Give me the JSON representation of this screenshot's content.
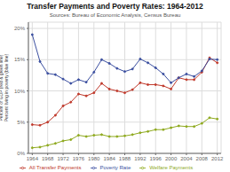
{
  "chart_data": {
    "type": "line",
    "title": "Transfer Payments and Poverty Rates: 1964-2012",
    "subtitle": "Sources: Bureau of Economic Analysis, Census Bureau",
    "ylabel": "Percent of GDP (red & green line)\nPercent living in poverty (blue line)",
    "x": [
      1964,
      1966,
      1968,
      1970,
      1972,
      1974,
      1976,
      1978,
      1980,
      1982,
      1984,
      1986,
      1988,
      1990,
      1992,
      1994,
      1996,
      1998,
      2000,
      2002,
      2004,
      2006,
      2008,
      2010,
      2012
    ],
    "series": [
      {
        "name": "All Transfer Payments",
        "color": "#c0392b",
        "marker": "circle",
        "values": [
          4.6,
          4.5,
          5.0,
          6.1,
          7.6,
          8.2,
          9.5,
          9.2,
          9.7,
          11.2,
          10.3,
          10.0,
          9.7,
          10.2,
          11.3,
          11.0,
          11.0,
          10.8,
          10.3,
          12.1,
          11.8,
          11.8,
          13.0,
          15.3,
          14.5
        ]
      },
      {
        "name": "Welfare Payments",
        "color": "#8faa1e",
        "marker": "circle",
        "values": [
          0.9,
          1.0,
          1.3,
          1.6,
          2.0,
          2.2,
          2.9,
          2.7,
          2.9,
          3.0,
          2.7,
          2.7,
          2.8,
          3.0,
          3.3,
          3.5,
          3.8,
          3.8,
          4.1,
          4.4,
          4.3,
          4.3,
          4.8,
          5.7,
          5.5
        ]
      },
      {
        "name": "Poverty Rate",
        "color": "#3b4fa0",
        "marker": "circle",
        "values": [
          19.0,
          14.7,
          12.8,
          12.6,
          11.9,
          11.2,
          11.8,
          11.4,
          13.0,
          15.0,
          14.4,
          13.6,
          13.1,
          13.5,
          15.1,
          14.5,
          13.7,
          12.7,
          11.3,
          12.1,
          12.7,
          12.3,
          13.2,
          15.1,
          15.0
        ]
      }
    ],
    "xlim": [
      1963,
      2013
    ],
    "xticks": [
      1964,
      1968,
      1972,
      1976,
      1980,
      1984,
      1988,
      1992,
      1996,
      2000,
      2004,
      2008,
      2012
    ],
    "ylim": [
      0,
      21
    ],
    "yticks": [
      {
        "value": 0,
        "label": "0%"
      },
      {
        "value": 5,
        "label": "5%"
      },
      {
        "value": 10,
        "label": "10%"
      },
      {
        "value": 15,
        "label": "15%"
      },
      {
        "value": 20,
        "label": "20%"
      }
    ],
    "grid": true,
    "legend": "bottom"
  }
}
